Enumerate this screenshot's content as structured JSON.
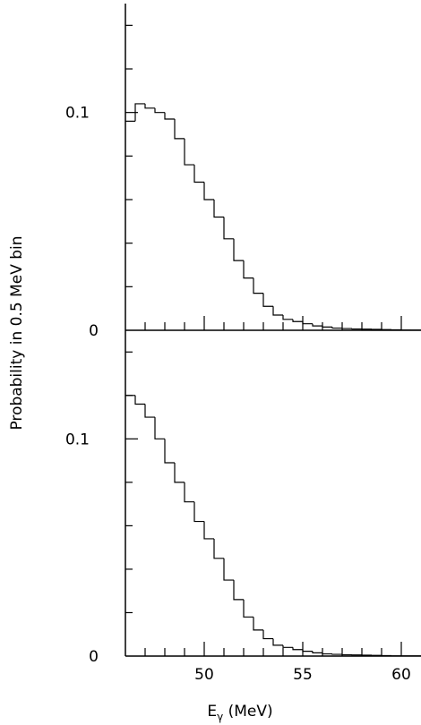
{
  "chart_data": [
    {
      "type": "histogram",
      "panel": "top",
      "bin_width": 0.5,
      "bin_start": 46,
      "xlim": [
        46,
        61
      ],
      "ylim": [
        0,
        0.15
      ],
      "ytick_labels": [
        {
          "value": 0,
          "label": "0"
        },
        {
          "value": 0.1,
          "label": "0.1"
        }
      ],
      "values": [
        0.096,
        0.104,
        0.102,
        0.1,
        0.097,
        0.088,
        0.076,
        0.068,
        0.06,
        0.052,
        0.042,
        0.032,
        0.024,
        0.017,
        0.011,
        0.007,
        0.005,
        0.004,
        0.003,
        0.002,
        0.0015,
        0.001,
        0.0008,
        0.0006,
        0.0005,
        0.0004,
        0.0003,
        0.0002,
        0.0001,
        0.0001
      ]
    },
    {
      "type": "histogram",
      "panel": "bottom",
      "bin_width": 0.5,
      "bin_start": 46,
      "xlim": [
        46,
        61
      ],
      "ylim": [
        0,
        0.15
      ],
      "ytick_labels": [
        {
          "value": 0,
          "label": "0"
        },
        {
          "value": 0.1,
          "label": "0.1"
        }
      ],
      "xtick_labels": [
        {
          "value": 50,
          "label": "50"
        },
        {
          "value": 55,
          "label": "55"
        },
        {
          "value": 60,
          "label": "60"
        }
      ],
      "values": [
        0.12,
        0.116,
        0.11,
        0.1,
        0.089,
        0.08,
        0.071,
        0.062,
        0.054,
        0.045,
        0.035,
        0.026,
        0.018,
        0.012,
        0.008,
        0.005,
        0.004,
        0.003,
        0.0022,
        0.0015,
        0.001,
        0.0008,
        0.0006,
        0.0005,
        0.0004,
        0.0003,
        0.0002,
        0.0001,
        0.0001,
        0.0001
      ]
    }
  ],
  "ylabel": "Probability in 0.5 MeV bin",
  "xlabel_main": "E",
  "xlabel_sub": "γ",
  "xlabel_unit": " (MeV)"
}
